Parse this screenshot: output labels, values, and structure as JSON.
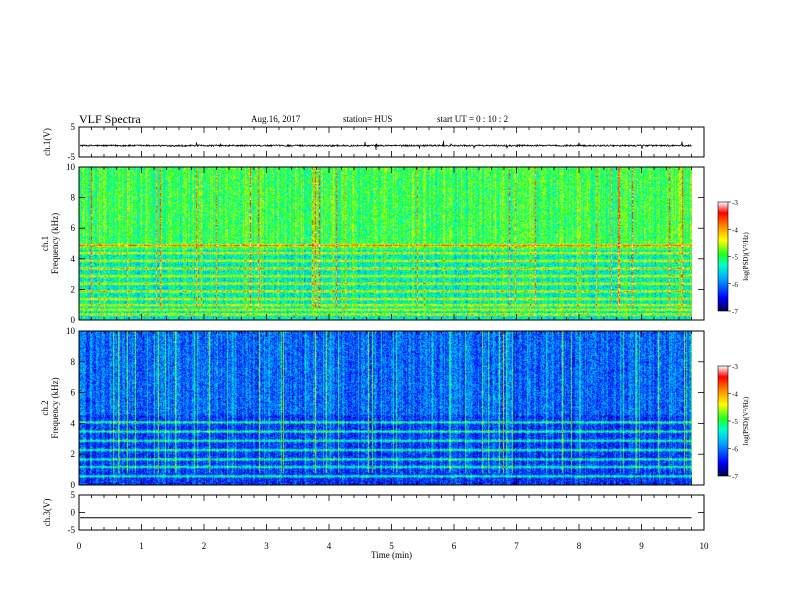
{
  "header": {
    "title": "VLF Spectra",
    "date": "Aug.16, 2017",
    "station": "station= HUS",
    "start": "start  UT =   0 : 10 : 2"
  },
  "colors": {
    "colormap": [
      "#000066",
      "#0000ff",
      "#00aaff",
      "#00ffcc",
      "#33ff33",
      "#ffff00",
      "#ff8800",
      "#ff0000",
      "#ffffff"
    ],
    "trace": "#000000"
  },
  "chart_data": [
    {
      "type": "line",
      "panel": "ch1-waveform",
      "ylabel": "ch.1(V)",
      "ylim": [
        -5,
        5
      ],
      "yticks": [
        5,
        -5
      ],
      "baseline_value": -1.2,
      "amplitude_approx": 0.5
    },
    {
      "type": "heatmap",
      "panel": "ch1-spectrogram",
      "ylabel": "ch.1\nFrequency (kHz)",
      "ylabel_line1": "ch.1",
      "ylabel_line2": "Frequency (kHz)",
      "ylim": [
        0,
        10
      ],
      "yticks": [
        0,
        2,
        4,
        6,
        8,
        10
      ],
      "colorbar": {
        "label": "log(PSD)(V²/Hz)",
        "range": [
          -7,
          -3
        ],
        "ticks": [
          -3,
          -4,
          -5,
          -6,
          -7
        ]
      },
      "bands_khz": [
        0.4,
        0.7,
        1.0,
        1.4,
        1.9,
        2.4,
        2.9,
        3.4,
        3.9,
        4.4,
        4.9
      ],
      "background_level": -5.4,
      "upper_background_level": -5.0
    },
    {
      "type": "heatmap",
      "panel": "ch2-spectrogram",
      "ylabel_line1": "ch.2",
      "ylabel_line2": "Frequency (kHz)",
      "ylim": [
        0,
        10
      ],
      "yticks": [
        0,
        2,
        4,
        6,
        8,
        10
      ],
      "colorbar": {
        "label": "log(PSD)(V²/Hz)",
        "range": [
          -7,
          -3
        ],
        "ticks": [
          -3,
          -4,
          -5,
          -6,
          -7
        ]
      },
      "bands_khz": [
        0.6,
        1.2,
        1.7,
        2.3,
        2.9,
        3.5,
        4.1
      ],
      "background_level": -6.3,
      "upper_background_level": -6.1
    },
    {
      "type": "line",
      "panel": "ch3-waveform",
      "ylabel": "ch.3(V)",
      "ylim": [
        -5,
        5
      ],
      "yticks": [
        5,
        0,
        -5
      ],
      "baseline_value": -1.5
    }
  ],
  "xaxis": {
    "label": "Time (min)",
    "xlim": [
      0,
      10
    ],
    "ticks": [
      "0",
      "1",
      "2",
      "3",
      "4",
      "5",
      "6",
      "7",
      "8",
      "9",
      "10"
    ],
    "data_end_min": 9.8
  }
}
